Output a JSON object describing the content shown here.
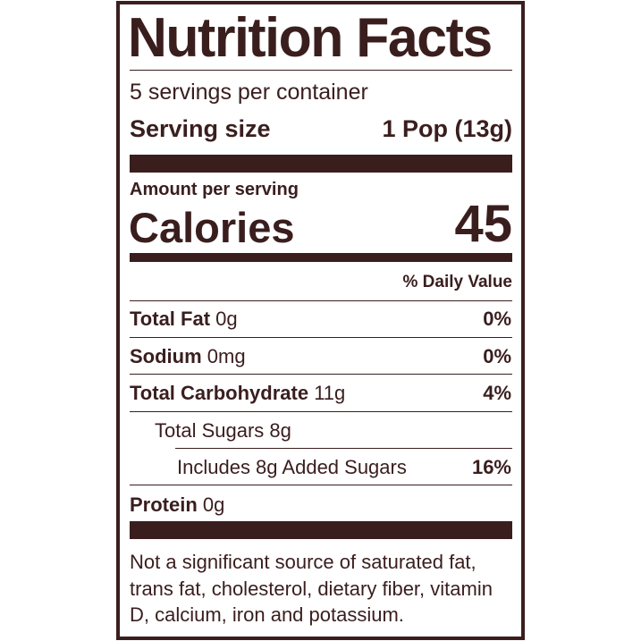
{
  "title": "Nutrition Facts",
  "servings_per_container": "5 servings per container",
  "serving_size": {
    "label": "Serving size",
    "value": "1 Pop (13g)"
  },
  "amount_per_serving": "Amount per serving",
  "calories": {
    "label": "Calories",
    "value": "45"
  },
  "daily_value_header": "% Daily Value",
  "nutrients": [
    {
      "name": "Total Fat",
      "amount": "0g",
      "dv": "0%"
    },
    {
      "name": "Sodium",
      "amount": "0mg",
      "dv": "0%"
    },
    {
      "name": "Total Carbohydrate",
      "amount": "11g",
      "dv": "4%"
    },
    {
      "name": "Total Sugars 8g"
    },
    {
      "name": "Includes 8g Added Sugars",
      "dv": "16%"
    },
    {
      "name": "Protein",
      "amount": "0g"
    }
  ],
  "footnote": [
    "Not a significant source of saturated fat,",
    "trans fat, cholesterol, dietary fiber, vitamin",
    "D, calcium, iron and potassium."
  ],
  "colors": {
    "ink": "#3a1e1e",
    "background": "#ffffff"
  }
}
